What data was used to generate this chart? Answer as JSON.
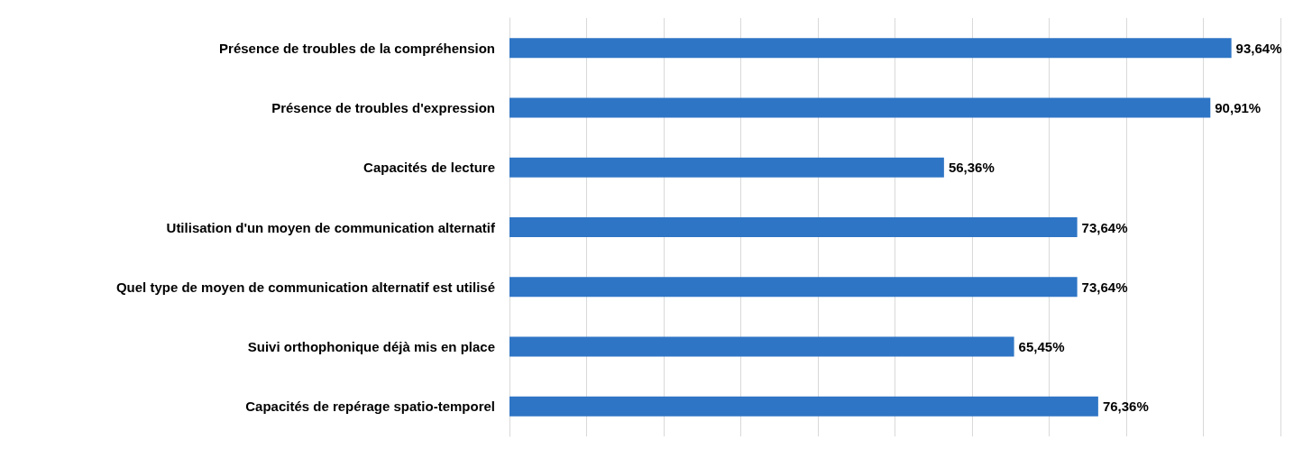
{
  "chart_data": {
    "type": "bar",
    "orientation": "horizontal",
    "categories": [
      "Présence de troubles de la compréhension",
      "Présence de troubles d'expression",
      "Capacités de lecture",
      "Utilisation d'un moyen de communication alternatif",
      "Quel type de moyen de communication alternatif est utilisé",
      "Suivi orthophonique déjà mis en place",
      "Capacités de repérage spatio-temporel"
    ],
    "values": [
      93.64,
      90.91,
      56.36,
      73.64,
      73.64,
      65.45,
      76.36
    ],
    "value_labels": [
      "93,64%",
      "90,91%",
      "56,36%",
      "73,64%",
      "73,64%",
      "65,45%",
      "76,36%"
    ],
    "color": "#2e75c5",
    "xlim": [
      0,
      100
    ],
    "xticks": [
      {
        "value": 0,
        "label": null
      },
      {
        "value": 10,
        "label": null
      },
      {
        "value": 20,
        "label": null
      },
      {
        "value": 30,
        "label": null
      },
      {
        "value": 40,
        "label": null
      },
      {
        "value": 50,
        "label": null
      },
      {
        "value": 60,
        "label": null
      },
      {
        "value": 70,
        "label": null
      },
      {
        "value": 80,
        "label": null
      },
      {
        "value": 90,
        "label": null
      },
      {
        "value": 100,
        "label": null
      }
    ],
    "grid": "x",
    "tick_labels": "y"
  }
}
